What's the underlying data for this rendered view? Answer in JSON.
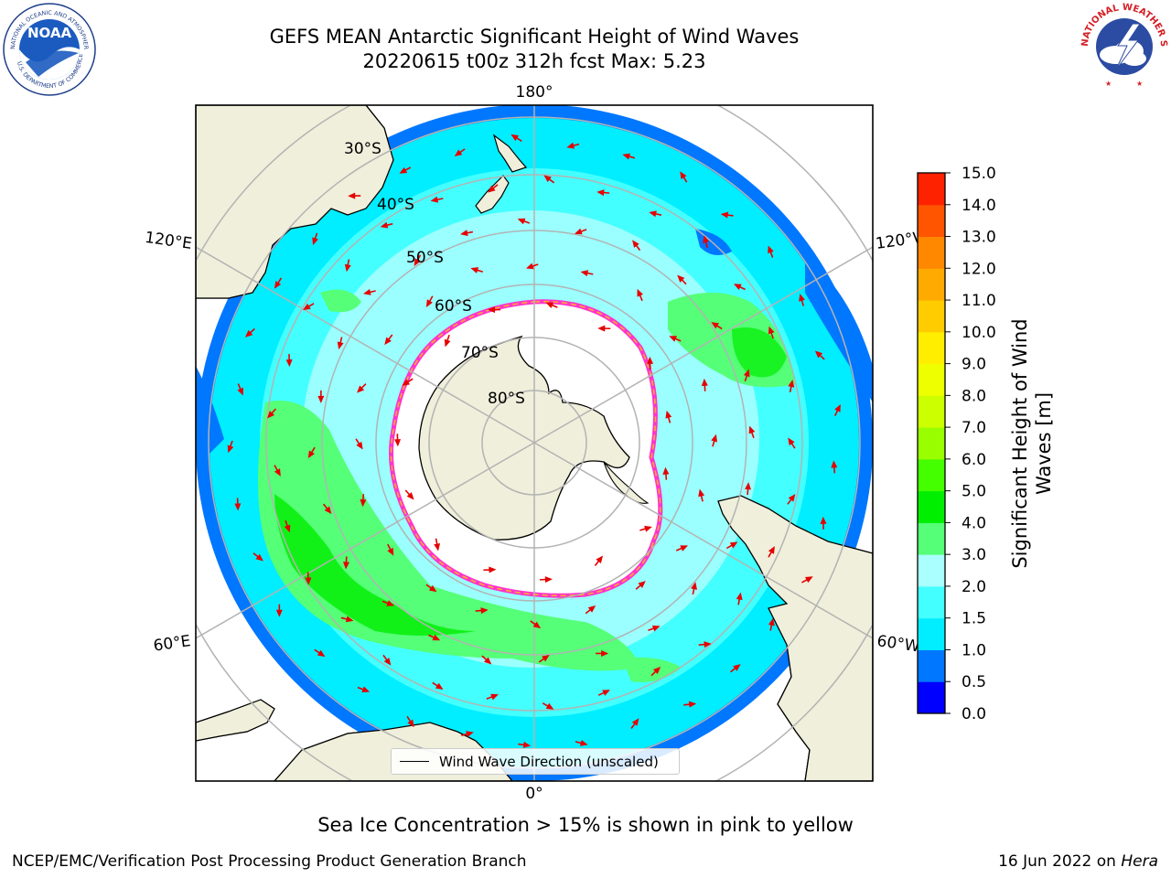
{
  "title": {
    "line1": "GEFS MEAN Antarctic Significant Height of Wind Waves",
    "line2": "20220615 t00z 312h fcst   Max: 5.23"
  },
  "map": {
    "projection": "south-polar-stereographic",
    "longitude_labels": [
      "180°",
      "120°E",
      "120°W",
      "60°E",
      "60°W",
      "0°"
    ],
    "latitude_labels": [
      "30°S",
      "40°S",
      "50°S",
      "60°S",
      "70°S",
      "80°S"
    ],
    "land_color": "#efefdb",
    "ice_color": "#ffffff",
    "ice_edge_colors": [
      "#ff33cc",
      "#ffaa33",
      "#ffee44"
    ],
    "arrow_color": "#e60000",
    "legend_label": "Wind Wave Direction (unscaled)"
  },
  "colorbar": {
    "label_line1": "Significant Height of Wind",
    "label_line2": "Waves [m]",
    "ticks": [
      "15.0",
      "14.0",
      "13.0",
      "12.0",
      "11.0",
      "10.0",
      "9.0",
      "8.0",
      "7.0",
      "6.0",
      "5.0",
      "4.0",
      "3.0",
      "2.0",
      "1.5",
      "1.0",
      "0.5",
      "0.0"
    ],
    "colors": [
      "#0000ff",
      "#0077ff",
      "#00eeff",
      "#44ffff",
      "#aaffff",
      "#55ff77",
      "#00ee00",
      "#44ff00",
      "#99ff00",
      "#ccff00",
      "#eeff00",
      "#ffee00",
      "#ffcc00",
      "#ffaa00",
      "#ff8800",
      "#ff5500",
      "#ff2200"
    ]
  },
  "note": "Sea Ice Concentration > 15% is shown in pink to yellow",
  "footer": {
    "left": "NCEP/EMC/Verification Post Processing Product Generation Branch",
    "right_date": "16 Jun 2022 on ",
    "right_host": "Hera"
  },
  "logos": {
    "noaa_text": "NOAA",
    "noaa_ring": "NATIONAL OCEANIC AND ATMOSPHERIC ADMINISTRATION",
    "noaa_ring_bottom": "U.S. DEPARTMENT OF COMMERCE",
    "nws_ring": "NATIONAL WEATHER SERVICE"
  }
}
